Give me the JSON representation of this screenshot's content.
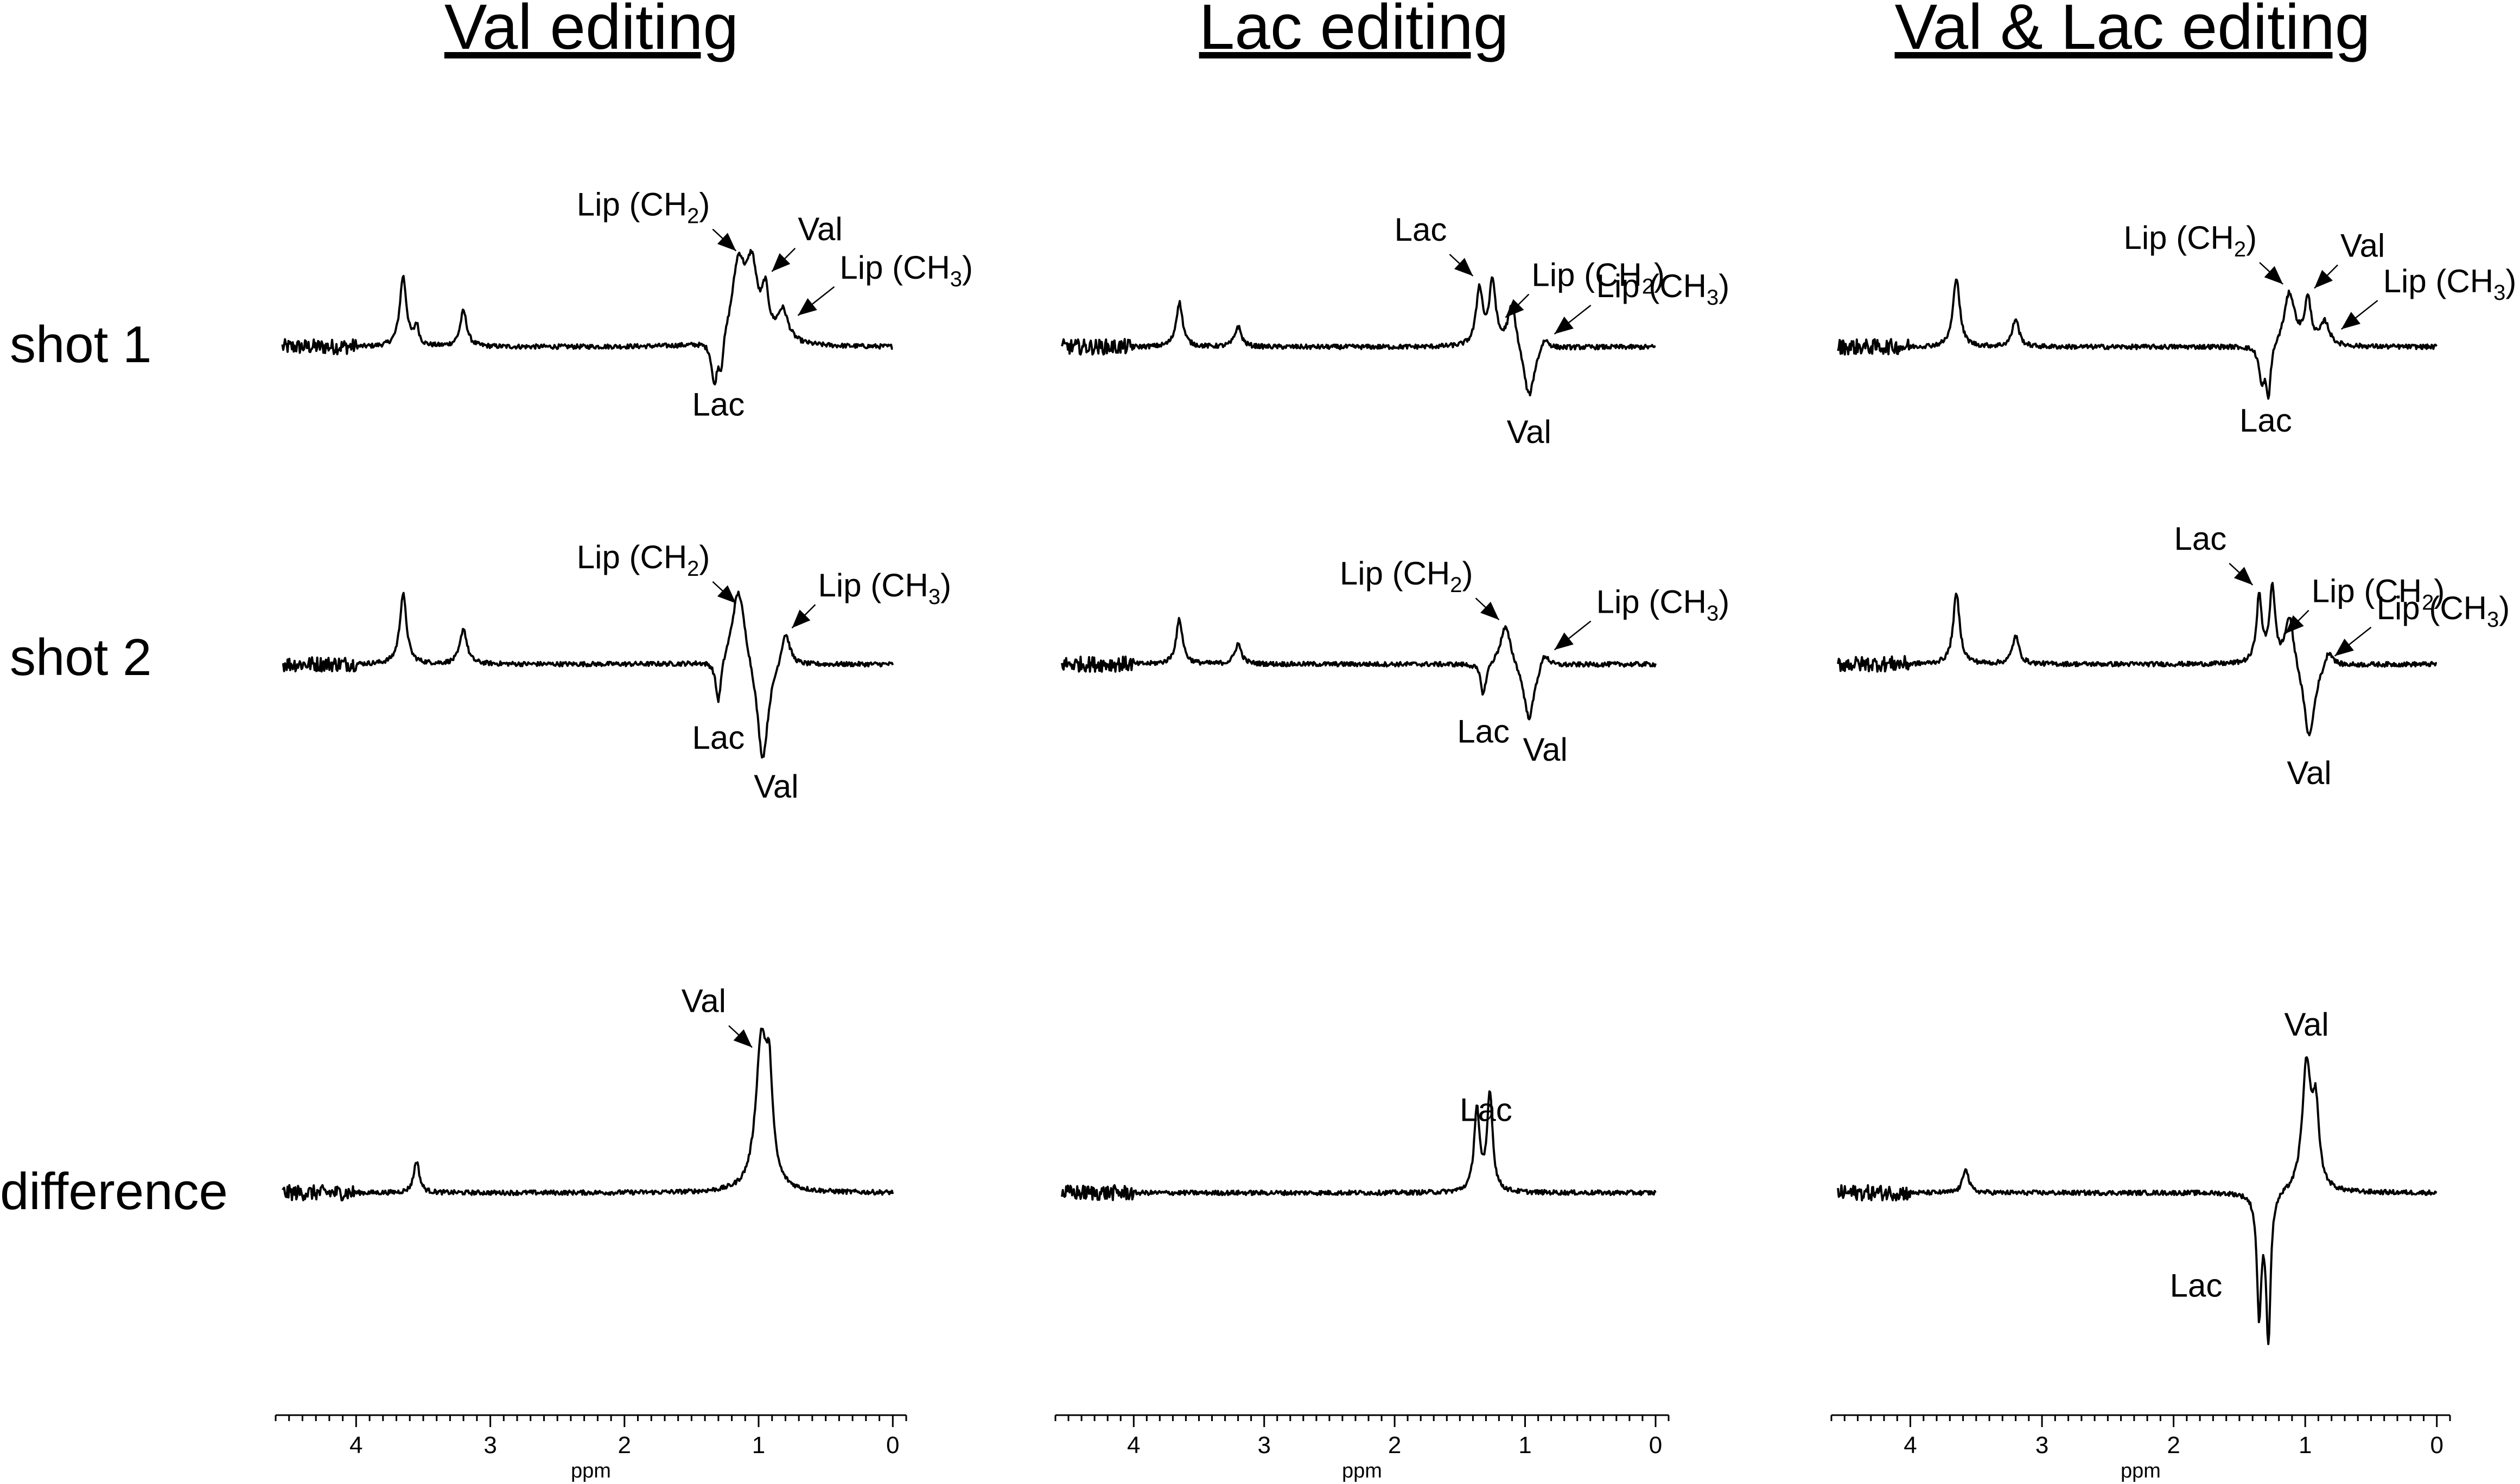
{
  "columns": [
    {
      "title": "Val editing"
    },
    {
      "title": "Lac editing"
    },
    {
      "title": "Val & Lac editing"
    }
  ],
  "rows": [
    {
      "label": "shot 1"
    },
    {
      "label": "shot 2"
    },
    {
      "label": "difference"
    }
  ],
  "axis": {
    "label": "ppm",
    "ticks": [
      "4",
      "3",
      "2",
      "1",
      "0"
    ],
    "xlim": [
      4.6,
      -0.1
    ],
    "reversed": true
  },
  "chart_data": [
    {
      "type": "line",
      "column": "Val editing",
      "row": "shot 1",
      "peaks": [
        {
          "ppm": 3.65,
          "amp": 0.55,
          "width": 0.03
        },
        {
          "ppm": 3.55,
          "amp": 0.15,
          "width": 0.02
        },
        {
          "ppm": 3.2,
          "amp": 0.28,
          "width": 0.03
        },
        {
          "ppm": 1.33,
          "amp": -0.35,
          "width": 0.025
        },
        {
          "ppm": 1.28,
          "amp": -0.25,
          "width": 0.02
        },
        {
          "ppm": 1.15,
          "amp": 0.62,
          "width": 0.06
        },
        {
          "ppm": 1.05,
          "amp": 0.55,
          "width": 0.05
        },
        {
          "ppm": 0.95,
          "amp": 0.35,
          "width": 0.03
        },
        {
          "ppm": 0.82,
          "amp": 0.25,
          "width": 0.05
        }
      ],
      "annotations": [
        {
          "text": "Lip (CH",
          "sub": "2",
          "suffix": ")",
          "ppm": 1.12,
          "pos": "above-left"
        },
        {
          "text": "Val",
          "ppm": 0.95,
          "pos": "above-right"
        },
        {
          "text": "Lip (CH",
          "sub": "3",
          "suffix": ")",
          "ppm": 0.78,
          "pos": "right"
        },
        {
          "text": "Lac",
          "ppm": 1.3,
          "pos": "below"
        }
      ]
    },
    {
      "type": "line",
      "column": "Val editing",
      "row": "shot 2",
      "peaks": [
        {
          "ppm": 3.65,
          "amp": 0.55,
          "width": 0.03
        },
        {
          "ppm": 3.2,
          "amp": 0.28,
          "width": 0.03
        },
        {
          "ppm": 1.3,
          "amp": -0.35,
          "width": 0.025
        },
        {
          "ppm": 1.15,
          "amp": 0.62,
          "width": 0.06
        },
        {
          "ppm": 0.97,
          "amp": -0.8,
          "width": 0.05
        },
        {
          "ppm": 0.8,
          "amp": 0.28,
          "width": 0.04
        }
      ],
      "annotations": [
        {
          "text": "Lip (CH",
          "sub": "2",
          "suffix": ")",
          "ppm": 1.12,
          "pos": "above-left"
        },
        {
          "text": "Lip (CH",
          "sub": "3",
          "suffix": ")",
          "ppm": 0.8,
          "pos": "above-right"
        },
        {
          "text": "Lac",
          "ppm": 1.3,
          "pos": "below"
        },
        {
          "text": "Val",
          "ppm": 0.95,
          "pos": "below-far"
        }
      ]
    },
    {
      "type": "line",
      "column": "Val editing",
      "row": "difference",
      "peaks": [
        {
          "ppm": 3.55,
          "amp": 0.25,
          "width": 0.025
        },
        {
          "ppm": 0.98,
          "amp": 1.15,
          "width": 0.05
        },
        {
          "ppm": 0.92,
          "amp": 0.7,
          "width": 0.03
        }
      ],
      "annotations": [
        {
          "text": "Val",
          "ppm": 1.0,
          "pos": "above-left"
        }
      ]
    },
    {
      "type": "line",
      "column": "Lac editing",
      "row": "shot 1",
      "peaks": [
        {
          "ppm": 3.65,
          "amp": 0.35,
          "width": 0.03
        },
        {
          "ppm": 3.2,
          "amp": 0.16,
          "width": 0.03
        },
        {
          "ppm": 1.35,
          "amp": 0.45,
          "width": 0.03
        },
        {
          "ppm": 1.25,
          "amp": 0.5,
          "width": 0.03
        },
        {
          "ppm": 1.1,
          "amp": 0.35,
          "width": 0.04
        },
        {
          "ppm": 0.97,
          "amp": -0.42,
          "width": 0.05
        },
        {
          "ppm": 0.85,
          "amp": 0.1,
          "width": 0.04
        }
      ],
      "annotations": [
        {
          "text": "Lac",
          "ppm": 1.35,
          "pos": "above-left"
        },
        {
          "text": "Lip (CH",
          "sub": "2",
          "suffix": ")",
          "ppm": 1.2,
          "pos": "above-right"
        },
        {
          "text": "Lip (CH",
          "sub": "3",
          "suffix": ")",
          "ppm": 0.85,
          "pos": "right"
        },
        {
          "text": "Val",
          "ppm": 0.97,
          "pos": "below"
        }
      ]
    },
    {
      "type": "line",
      "column": "Lac editing",
      "row": "shot 2",
      "peaks": [
        {
          "ppm": 3.65,
          "amp": 0.35,
          "width": 0.03
        },
        {
          "ppm": 3.2,
          "amp": 0.16,
          "width": 0.03
        },
        {
          "ppm": 1.32,
          "amp": -0.25,
          "width": 0.025
        },
        {
          "ppm": 1.15,
          "amp": 0.32,
          "width": 0.05
        },
        {
          "ppm": 0.97,
          "amp": -0.45,
          "width": 0.05
        },
        {
          "ppm": 0.85,
          "amp": 0.12,
          "width": 0.04
        }
      ],
      "annotations": [
        {
          "text": "Lip (CH",
          "sub": "2",
          "suffix": ")",
          "ppm": 1.15,
          "pos": "above-left"
        },
        {
          "text": "Lip (CH",
          "sub": "3",
          "suffix": ")",
          "ppm": 0.85,
          "pos": "right"
        },
        {
          "text": "Lac",
          "ppm": 1.32,
          "pos": "below"
        },
        {
          "text": "Val",
          "ppm": 0.97,
          "pos": "below-right"
        }
      ]
    },
    {
      "type": "line",
      "column": "Lac editing",
      "row": "difference",
      "peaks": [
        {
          "ppm": 1.37,
          "amp": 0.65,
          "width": 0.025
        },
        {
          "ppm": 1.27,
          "amp": 0.78,
          "width": 0.025
        }
      ],
      "annotations": [
        {
          "text": "Lac",
          "ppm": 1.3,
          "pos": "above"
        }
      ]
    },
    {
      "type": "line",
      "column": "Val & Lac editing",
      "row": "shot 1",
      "peaks": [
        {
          "ppm": 3.65,
          "amp": 0.55,
          "width": 0.03
        },
        {
          "ppm": 3.2,
          "amp": 0.22,
          "width": 0.03
        },
        {
          "ppm": 1.33,
          "amp": -0.28,
          "width": 0.025
        },
        {
          "ppm": 1.28,
          "amp": -0.4,
          "width": 0.02
        },
        {
          "ppm": 1.12,
          "amp": 0.42,
          "width": 0.05
        },
        {
          "ppm": 0.98,
          "amp": 0.35,
          "width": 0.03
        },
        {
          "ppm": 0.85,
          "amp": 0.18,
          "width": 0.04
        }
      ],
      "annotations": [
        {
          "text": "Lip (CH",
          "sub": "2",
          "suffix": ")",
          "ppm": 1.12,
          "pos": "above-left"
        },
        {
          "text": "Val",
          "ppm": 0.98,
          "pos": "above-right"
        },
        {
          "text": "Lip (CH",
          "sub": "3",
          "suffix": ")",
          "ppm": 0.8,
          "pos": "right"
        },
        {
          "text": "Lac",
          "ppm": 1.3,
          "pos": "below"
        }
      ]
    },
    {
      "type": "line",
      "column": "Val & Lac editing",
      "row": "shot 2",
      "peaks": [
        {
          "ppm": 3.65,
          "amp": 0.55,
          "width": 0.03
        },
        {
          "ppm": 3.2,
          "amp": 0.22,
          "width": 0.03
        },
        {
          "ppm": 1.35,
          "amp": 0.52,
          "width": 0.025
        },
        {
          "ppm": 1.25,
          "amp": 0.6,
          "width": 0.025
        },
        {
          "ppm": 1.12,
          "amp": 0.4,
          "width": 0.04
        },
        {
          "ppm": 0.97,
          "amp": -0.6,
          "width": 0.05
        },
        {
          "ppm": 0.82,
          "amp": 0.14,
          "width": 0.04
        }
      ],
      "annotations": [
        {
          "text": "Lac",
          "ppm": 1.35,
          "pos": "above-left"
        },
        {
          "text": "Lip (CH",
          "sub": "2",
          "suffix": ")",
          "ppm": 1.2,
          "pos": "above-right"
        },
        {
          "text": "Lip (CH",
          "sub": "3",
          "suffix": ")",
          "ppm": 0.85,
          "pos": "right"
        },
        {
          "text": "Val",
          "ppm": 0.97,
          "pos": "below"
        }
      ]
    },
    {
      "type": "line",
      "column": "Val & Lac editing",
      "row": "difference",
      "peaks": [
        {
          "ppm": 3.58,
          "amp": 0.2,
          "width": 0.025
        },
        {
          "ppm": 1.35,
          "amp": -0.95,
          "width": 0.02
        },
        {
          "ppm": 1.28,
          "amp": -1.15,
          "width": 0.02
        },
        {
          "ppm": 0.99,
          "amp": 0.98,
          "width": 0.04
        },
        {
          "ppm": 0.92,
          "amp": 0.6,
          "width": 0.03
        }
      ],
      "annotations": [
        {
          "text": "Val",
          "ppm": 0.99,
          "pos": "above"
        },
        {
          "text": "Lac",
          "ppm": 1.3,
          "pos": "below-left"
        }
      ]
    }
  ]
}
